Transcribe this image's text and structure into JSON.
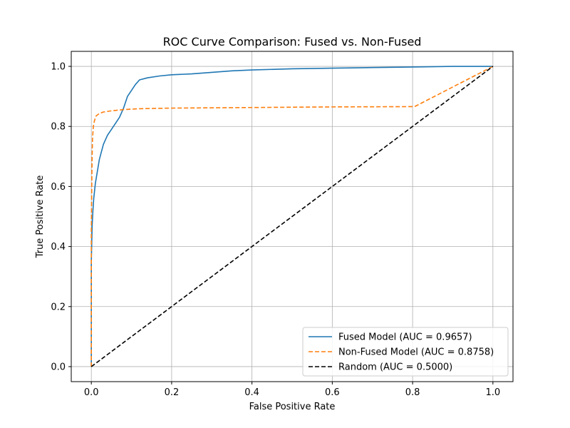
{
  "chart_data": {
    "type": "line",
    "title": "ROC Curve Comparison: Fused vs. Non-Fused",
    "xlabel": "False Positive Rate",
    "ylabel": "True Positive Rate",
    "xlim": [
      -0.05,
      1.05
    ],
    "ylim": [
      -0.05,
      1.05
    ],
    "xticks": [
      0.0,
      0.2,
      0.4,
      0.6,
      0.8,
      1.0
    ],
    "yticks": [
      0.0,
      0.2,
      0.4,
      0.6,
      0.8,
      1.0
    ],
    "tick_labels_x": [
      "0.0",
      "0.2",
      "0.4",
      "0.6",
      "0.8",
      "1.0"
    ],
    "tick_labels_y": [
      "0.0",
      "0.2",
      "0.4",
      "0.6",
      "0.8",
      "1.0"
    ],
    "grid": true,
    "legend_position": "lower-right",
    "series": [
      {
        "name": "Fused Model (AUC = 0.9657)",
        "color": "#1f77b4",
        "style": "solid",
        "x": [
          0.0,
          0.0,
          0.002,
          0.004,
          0.006,
          0.01,
          0.015,
          0.02,
          0.03,
          0.04,
          0.05,
          0.06,
          0.07,
          0.08,
          0.09,
          0.1,
          0.11,
          0.12,
          0.14,
          0.17,
          0.2,
          0.25,
          0.3,
          0.35,
          0.4,
          0.5,
          0.6,
          0.7,
          0.8,
          0.9,
          1.0
        ],
        "y": [
          0.0,
          0.35,
          0.47,
          0.52,
          0.56,
          0.61,
          0.65,
          0.69,
          0.74,
          0.77,
          0.79,
          0.81,
          0.83,
          0.86,
          0.9,
          0.92,
          0.94,
          0.955,
          0.962,
          0.968,
          0.972,
          0.975,
          0.98,
          0.985,
          0.988,
          0.992,
          0.994,
          0.996,
          0.998,
          1.0,
          1.0
        ]
      },
      {
        "name": "Non-Fused Model (AUC = 0.8758)",
        "color": "#ff7f0e",
        "style": "dashed",
        "x": [
          0.0,
          0.0,
          0.001,
          0.002,
          0.003,
          0.005,
          0.008,
          0.012,
          0.02,
          0.03,
          0.05,
          0.08,
          0.12,
          0.2,
          0.4,
          0.6,
          0.805,
          1.0
        ],
        "y": [
          0.0,
          0.45,
          0.6,
          0.7,
          0.76,
          0.8,
          0.82,
          0.835,
          0.843,
          0.848,
          0.852,
          0.856,
          0.859,
          0.861,
          0.863,
          0.865,
          0.866,
          1.0
        ]
      },
      {
        "name": "Random (AUC = 0.5000)",
        "color": "#000000",
        "style": "dashed",
        "x": [
          0.0,
          1.0
        ],
        "y": [
          0.0,
          1.0
        ]
      }
    ]
  }
}
